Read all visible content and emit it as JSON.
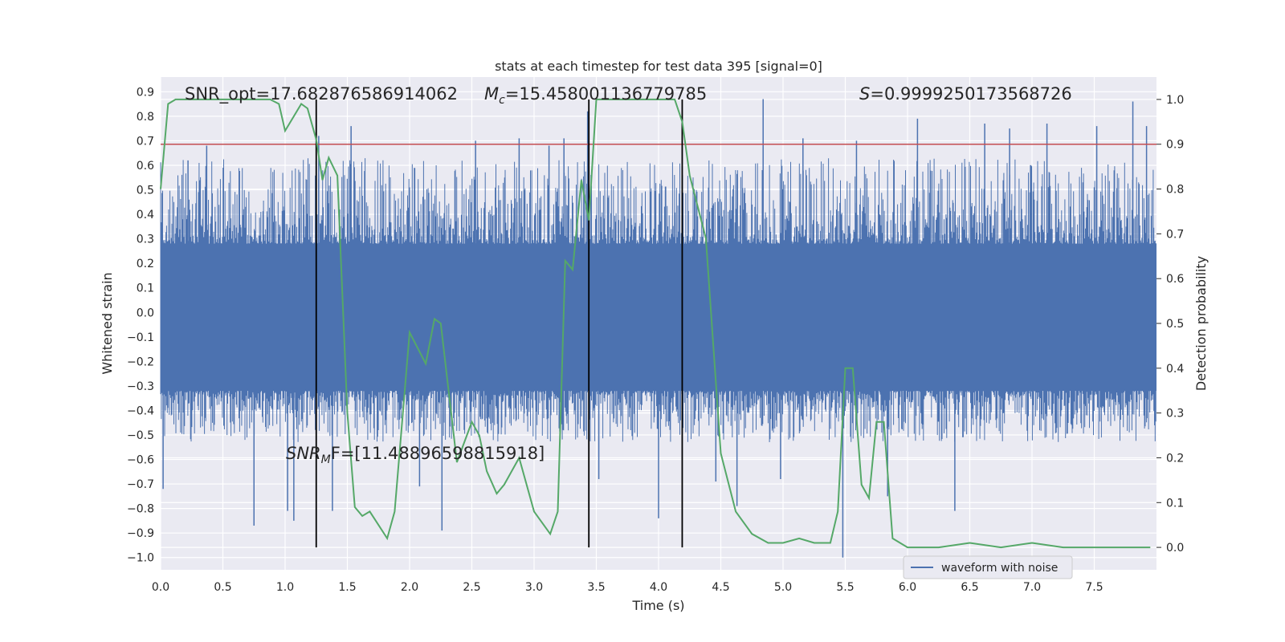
{
  "chart_data": {
    "type": "line",
    "title": "stats at each timestep for test data 395 [signal=0]",
    "xlabel": "Time (s)",
    "ylabel": "Whitened strain",
    "y2label": "Detection probability",
    "xlim": [
      0.0,
      8.0
    ],
    "ylim": [
      -1.05,
      0.96
    ],
    "y2lim": [
      -0.05,
      1.05
    ],
    "xticks": [
      0.0,
      0.5,
      1.0,
      1.5,
      2.0,
      2.5,
      3.0,
      3.5,
      4.0,
      4.5,
      5.0,
      5.5,
      6.0,
      6.5,
      7.0,
      7.5
    ],
    "yticks": [
      0.9,
      0.8,
      0.7,
      0.6,
      0.5,
      0.4,
      0.3,
      0.2,
      0.1,
      0.0,
      -0.1,
      -0.2,
      -0.3,
      -0.4,
      -0.5,
      -0.6,
      -0.7,
      -0.8,
      -0.9,
      -1.0
    ],
    "y2ticks": [
      1.0,
      0.9,
      0.8,
      0.7,
      0.6,
      0.5,
      0.4,
      0.3,
      0.2,
      0.1,
      0.0
    ],
    "grid": true,
    "legend": {
      "placement": "lower-right",
      "entries": [
        "waveform with noise"
      ]
    },
    "colors": {
      "waveform": "#4c72b0",
      "probability": "#55a868",
      "threshold": "#c44e52",
      "markers": "#000000",
      "background": "#eaeaf2"
    },
    "annotations": {
      "snr_opt": "SNR_opt=17.682876586914062",
      "mc_symbol": "M",
      "mc_sub": "c",
      "mc_value": "=15.458001136779785",
      "s_symbol": "S",
      "s_value": "=0.9999250173568726",
      "snrmf_symbol": "SNR",
      "snrmf_sub": "M",
      "snrmf_value": "F=[11.488965988159​18]"
    },
    "threshold": {
      "axis": "y2",
      "value": 0.9
    },
    "vertical_lines": {
      "x": [
        1.25,
        3.44,
        4.19
      ],
      "y_from": -1.0,
      "y_to": 1.0,
      "axis": "y2"
    },
    "waveform": {
      "name": "waveform with noise",
      "x_range": [
        0.0,
        8.0
      ],
      "typical_band": [
        -0.45,
        0.55
      ],
      "spikes": [
        {
          "x": 0.02,
          "y": -0.72
        },
        {
          "x": 0.22,
          "y": 0.62
        },
        {
          "x": 0.37,
          "y": 0.68
        },
        {
          "x": 0.75,
          "y": -0.87
        },
        {
          "x": 1.02,
          "y": -0.81
        },
        {
          "x": 1.07,
          "y": -0.85
        },
        {
          "x": 1.27,
          "y": 0.72
        },
        {
          "x": 1.38,
          "y": -0.81
        },
        {
          "x": 1.53,
          "y": 0.76
        },
        {
          "x": 2.08,
          "y": -0.71
        },
        {
          "x": 2.26,
          "y": -0.89
        },
        {
          "x": 2.53,
          "y": 0.7
        },
        {
          "x": 2.88,
          "y": 0.71
        },
        {
          "x": 3.12,
          "y": 0.68
        },
        {
          "x": 3.24,
          "y": 0.71
        },
        {
          "x": 3.43,
          "y": 0.82
        },
        {
          "x": 3.52,
          "y": -0.68
        },
        {
          "x": 4.0,
          "y": -0.84
        },
        {
          "x": 4.46,
          "y": -0.69
        },
        {
          "x": 4.63,
          "y": -0.79
        },
        {
          "x": 4.84,
          "y": 0.87
        },
        {
          "x": 4.98,
          "y": -0.68
        },
        {
          "x": 5.16,
          "y": 0.71
        },
        {
          "x": 5.48,
          "y": -1.0
        },
        {
          "x": 5.59,
          "y": 0.7
        },
        {
          "x": 5.84,
          "y": -0.75
        },
        {
          "x": 6.08,
          "y": 0.79
        },
        {
          "x": 6.38,
          "y": -0.81
        },
        {
          "x": 6.62,
          "y": 0.77
        },
        {
          "x": 6.82,
          "y": 0.75
        },
        {
          "x": 7.12,
          "y": 0.77
        },
        {
          "x": 7.52,
          "y": 0.76
        },
        {
          "x": 7.81,
          "y": 0.86
        },
        {
          "x": 7.92,
          "y": 0.76
        }
      ]
    },
    "probability": {
      "x": [
        0.0,
        0.06,
        0.12,
        0.25,
        0.5,
        0.75,
        0.88,
        0.95,
        1.0,
        1.13,
        1.18,
        1.25,
        1.3,
        1.35,
        1.42,
        1.5,
        1.56,
        1.62,
        1.68,
        1.75,
        1.82,
        1.88,
        2.0,
        2.13,
        2.2,
        2.25,
        2.38,
        2.5,
        2.56,
        2.62,
        2.7,
        2.76,
        2.88,
        3.0,
        3.13,
        3.19,
        3.25,
        3.31,
        3.38,
        3.44,
        3.5,
        3.56,
        3.75,
        3.88,
        4.0,
        4.13,
        4.19,
        4.25,
        4.38,
        4.5,
        4.62,
        4.75,
        4.88,
        5.0,
        5.13,
        5.25,
        5.31,
        5.38,
        5.44,
        5.5,
        5.56,
        5.63,
        5.69,
        5.75,
        5.81,
        5.88,
        6.0,
        6.25,
        6.5,
        6.75,
        7.0,
        7.25,
        7.5,
        7.75,
        7.95
      ],
      "y": [
        0.8,
        0.99,
        1.0,
        1.0,
        1.0,
        1.0,
        1.0,
        0.99,
        0.93,
        0.99,
        0.98,
        0.91,
        0.82,
        0.87,
        0.83,
        0.3,
        0.09,
        0.07,
        0.08,
        0.05,
        0.02,
        0.08,
        0.48,
        0.41,
        0.51,
        0.5,
        0.19,
        0.28,
        0.25,
        0.17,
        0.12,
        0.14,
        0.2,
        0.08,
        0.03,
        0.08,
        0.64,
        0.62,
        0.82,
        0.73,
        1.0,
        1.0,
        1.0,
        1.0,
        1.0,
        1.0,
        0.95,
        0.83,
        0.69,
        0.21,
        0.08,
        0.03,
        0.01,
        0.01,
        0.02,
        0.01,
        0.01,
        0.01,
        0.08,
        0.4,
        0.4,
        0.14,
        0.11,
        0.28,
        0.28,
        0.02,
        0.0,
        0.0,
        0.01,
        0.0,
        0.01,
        0.0,
        0.0,
        0.0,
        0.0
      ]
    }
  }
}
